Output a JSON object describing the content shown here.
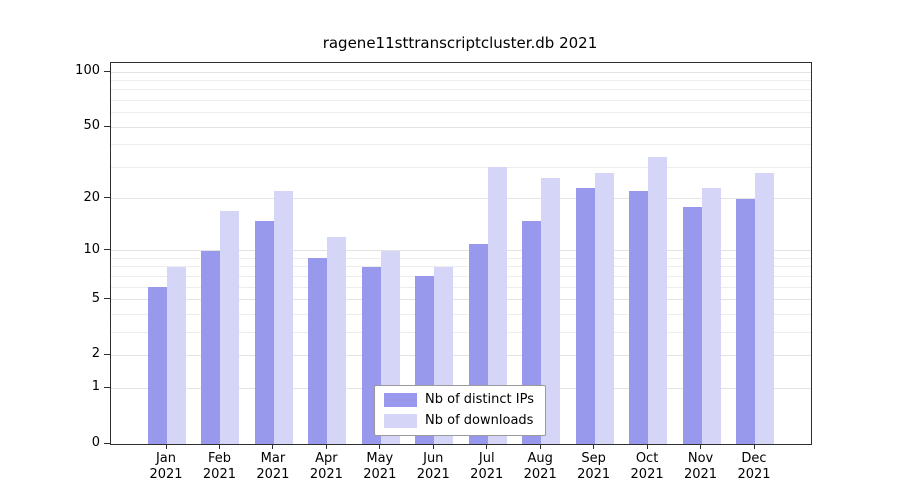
{
  "chart_data": {
    "type": "bar",
    "title": "ragene11sttranscriptcluster.db 2021",
    "xlabel": "",
    "ylabel": "",
    "y_scale": "log1p",
    "ylim": [
      0,
      100
    ],
    "y_ticks": [
      0,
      1,
      2,
      5,
      10,
      20,
      50,
      100
    ],
    "grid_lines": [
      1,
      2,
      3,
      4,
      5,
      6,
      7,
      8,
      9,
      10,
      20,
      30,
      40,
      50,
      60,
      70,
      80,
      90,
      100
    ],
    "grid_major": [
      1,
      2,
      5,
      10,
      20,
      50,
      100
    ],
    "grid": "horizontal",
    "legend_position": "bottom-center",
    "months": [
      "Jan",
      "Feb",
      "Mar",
      "Apr",
      "May",
      "Jun",
      "Jul",
      "Aug",
      "Sep",
      "Oct",
      "Nov",
      "Dec"
    ],
    "year": "2021",
    "series": [
      {
        "name": "Nb of distinct IPs",
        "color": "#9898ec",
        "values": [
          6,
          10,
          15,
          9,
          8,
          7,
          11,
          15,
          23,
          22,
          18,
          20
        ]
      },
      {
        "name": "Nb of downloads",
        "color": "#d5d5f8",
        "values": [
          8,
          17,
          22,
          12,
          10,
          8,
          30,
          26,
          28,
          34,
          23,
          28
        ]
      }
    ]
  }
}
